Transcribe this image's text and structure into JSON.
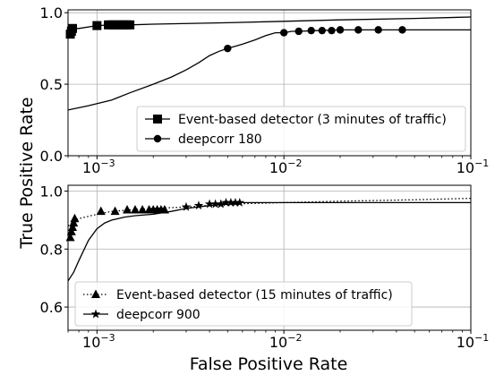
{
  "chart_data": [
    {
      "type": "line",
      "xscale": "log",
      "xlim": [
        0.0007,
        0.1
      ],
      "ylim": [
        0.0,
        1.02
      ],
      "xticks": [
        0.001,
        0.01,
        0.1
      ],
      "xtick_labels": [
        {
          "base": "10",
          "exp": "−3"
        },
        {
          "base": "10",
          "exp": "−2"
        },
        {
          "base": "10",
          "exp": "−1"
        }
      ],
      "yticks": [
        0.0,
        0.5,
        1.0
      ],
      "ytick_labels": [
        "0.0",
        "0.5",
        "1.0"
      ],
      "grid": true,
      "legend_position": "lower-right",
      "series": [
        {
          "name": "Event-based detector (3 minutes of traffic)",
          "line_style": "solid",
          "marker": "square",
          "x": [
            0.00071,
            0.00072,
            0.00073,
            0.00075,
            0.0008,
            0.001,
            0.0012,
            0.0013,
            0.0014,
            0.0015,
            0.002,
            0.005,
            0.01,
            0.02,
            0.05,
            0.1
          ],
          "y": [
            0.85,
            0.87,
            0.88,
            0.89,
            0.89,
            0.91,
            0.915,
            0.915,
            0.915,
            0.915,
            0.92,
            0.93,
            0.94,
            0.95,
            0.96,
            0.97
          ],
          "marker_x": [
            0.00072,
            0.00073,
            0.00074,
            0.001,
            0.00115,
            0.0012,
            0.00125,
            0.0013,
            0.00135,
            0.0014,
            0.00145,
            0.0015
          ],
          "marker_y": [
            0.85,
            0.87,
            0.89,
            0.91,
            0.915,
            0.915,
            0.915,
            0.915,
            0.915,
            0.915,
            0.915,
            0.915
          ]
        },
        {
          "name": "deepcorr 180",
          "line_style": "solid",
          "marker": "circle",
          "x": [
            0.0007,
            0.0009,
            0.0012,
            0.0015,
            0.002,
            0.0025,
            0.003,
            0.0035,
            0.004,
            0.0045,
            0.005,
            0.006,
            0.007,
            0.008,
            0.009,
            0.01,
            0.011,
            0.012,
            0.015,
            0.02,
            0.03,
            0.05,
            0.1
          ],
          "y": [
            0.32,
            0.35,
            0.39,
            0.44,
            0.5,
            0.55,
            0.6,
            0.65,
            0.7,
            0.73,
            0.75,
            0.78,
            0.81,
            0.84,
            0.86,
            0.86,
            0.87,
            0.87,
            0.875,
            0.88,
            0.88,
            0.88,
            0.88
          ],
          "marker_x": [
            0.005,
            0.01,
            0.012,
            0.014,
            0.016,
            0.018,
            0.02,
            0.025,
            0.032,
            0.043
          ],
          "marker_y": [
            0.75,
            0.86,
            0.87,
            0.875,
            0.875,
            0.875,
            0.88,
            0.88,
            0.88,
            0.88
          ]
        }
      ]
    },
    {
      "type": "line",
      "xscale": "log",
      "xlim": [
        0.0007,
        0.1
      ],
      "ylim": [
        0.52,
        1.02
      ],
      "xticks": [
        0.001,
        0.01,
        0.1
      ],
      "xtick_labels": [
        {
          "base": "10",
          "exp": "−3"
        },
        {
          "base": "10",
          "exp": "−2"
        },
        {
          "base": "10",
          "exp": "−1"
        }
      ],
      "yticks": [
        0.6,
        0.8,
        1.0
      ],
      "ytick_labels": [
        "0.6",
        "0.8",
        "1.0"
      ],
      "grid": true,
      "legend_position": "lower-left",
      "series": [
        {
          "name": "Event-based detector (15 minutes of traffic)",
          "line_style": "dotted",
          "marker": "triangle",
          "x": [
            0.0007,
            0.00075,
            0.0008,
            0.001,
            0.0012,
            0.0015,
            0.002,
            0.003,
            0.005,
            0.01,
            0.02,
            0.05,
            0.1
          ],
          "y": [
            0.88,
            0.895,
            0.905,
            0.92,
            0.93,
            0.935,
            0.94,
            0.945,
            0.955,
            0.96,
            0.965,
            0.97,
            0.975
          ],
          "marker_x": [
            0.00072,
            0.00073,
            0.00074,
            0.00075,
            0.00076,
            0.00105,
            0.00125,
            0.00145,
            0.0016,
            0.00175,
            0.0019,
            0.002,
            0.0021,
            0.0022,
            0.0023
          ],
          "marker_y": [
            0.84,
            0.86,
            0.875,
            0.89,
            0.905,
            0.93,
            0.93,
            0.935,
            0.935,
            0.935,
            0.935,
            0.935,
            0.935,
            0.935,
            0.935
          ]
        },
        {
          "name": "deepcorr 900",
          "line_style": "solid",
          "marker": "star",
          "x": [
            0.0007,
            0.00075,
            0.0008,
            0.0009,
            0.001,
            0.0011,
            0.0012,
            0.0014,
            0.0016,
            0.002,
            0.0025,
            0.003,
            0.004,
            0.005,
            0.006,
            0.01,
            0.02,
            0.05,
            0.1
          ],
          "y": [
            0.69,
            0.72,
            0.76,
            0.83,
            0.87,
            0.89,
            0.9,
            0.91,
            0.915,
            0.92,
            0.93,
            0.94,
            0.95,
            0.955,
            0.96,
            0.96,
            0.96,
            0.96,
            0.96
          ],
          "marker_x": [
            0.003,
            0.0035,
            0.004,
            0.0043,
            0.0046,
            0.0049,
            0.0052,
            0.0055,
            0.0058
          ],
          "marker_y": [
            0.945,
            0.95,
            0.955,
            0.955,
            0.955,
            0.96,
            0.96,
            0.96,
            0.96
          ]
        }
      ]
    }
  ],
  "ylabel": "True Positive Rate",
  "xlabel": "False Positive Rate",
  "colors": {
    "line": "#000000",
    "grid": "#b0b0b0",
    "legend_border": "#cccccc",
    "background": "#ffffff"
  }
}
